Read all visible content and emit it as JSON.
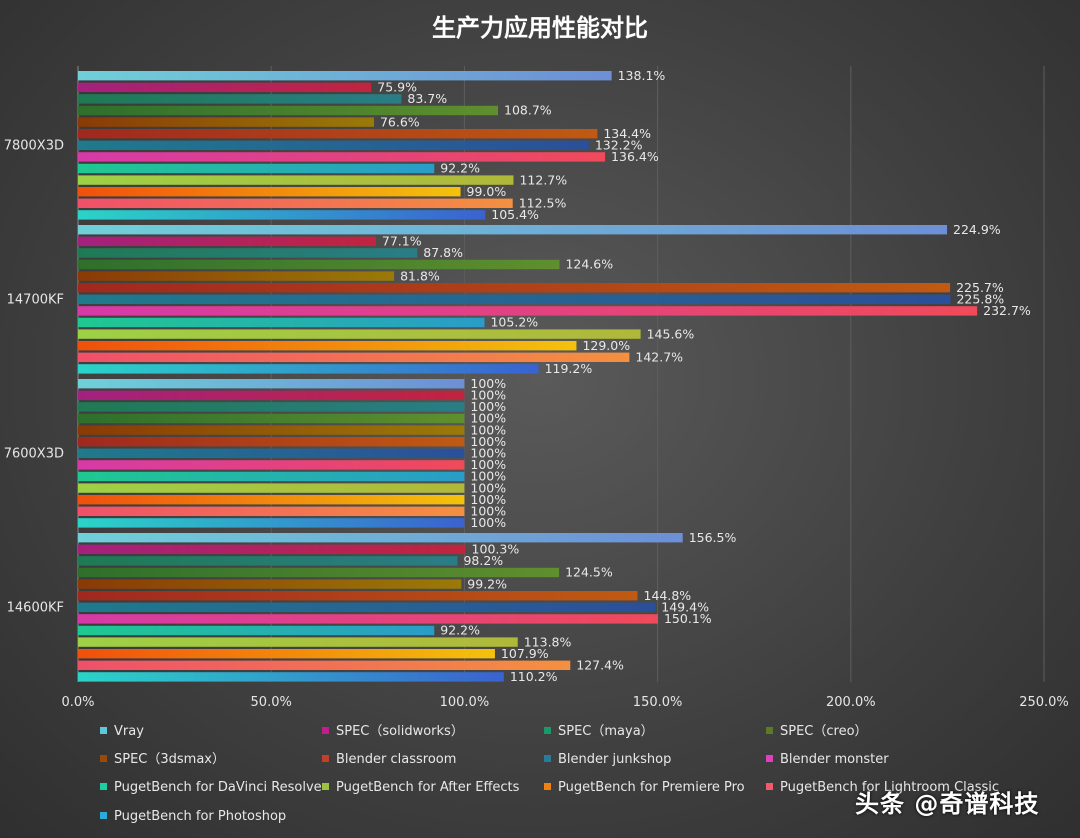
{
  "chart_data": {
    "type": "bar",
    "orientation": "horizontal",
    "title": "生产力应用性能对比",
    "xlabel": "",
    "ylabel": "",
    "xlim": [
      0,
      250
    ],
    "x_ticks": [
      "0.0%",
      "50.0%",
      "100.0%",
      "150.0%",
      "200.0%",
      "250.0%"
    ],
    "grid": true,
    "legend_position": "bottom",
    "categories": [
      "7800X3D",
      "14700KF",
      "7600X3D",
      "14600KF"
    ],
    "series": [
      {
        "name": "Vray",
        "values": [
          138.1,
          224.9,
          100,
          156.5
        ],
        "labels": [
          "138.1%",
          "224.9%",
          "100%",
          "156.5%"
        ]
      },
      {
        "name": "SPEC（solidworks）",
        "values": [
          75.9,
          77.1,
          100,
          100.3
        ],
        "labels": [
          "75.9%",
          "77.1%",
          "100%",
          "100.3%"
        ]
      },
      {
        "name": "SPEC（maya）",
        "values": [
          83.7,
          87.8,
          100,
          98.2
        ],
        "labels": [
          "83.7%",
          "87.8%",
          "100%",
          "98.2%"
        ]
      },
      {
        "name": "SPEC（creo）",
        "values": [
          108.7,
          124.6,
          100,
          124.5
        ],
        "labels": [
          "108.7%",
          "124.6%",
          "100%",
          "124.5%"
        ]
      },
      {
        "name": "SPEC（3dsmax）",
        "values": [
          76.6,
          81.8,
          100,
          99.2
        ],
        "labels": [
          "76.6%",
          "81.8%",
          "100%",
          "99.2%"
        ]
      },
      {
        "name": "Blender classroom",
        "values": [
          134.4,
          225.7,
          100,
          144.8
        ],
        "labels": [
          "134.4%",
          "225.7%",
          "100%",
          "144.8%"
        ]
      },
      {
        "name": "Blender junkshop",
        "values": [
          132.2,
          225.8,
          100,
          149.4
        ],
        "labels": [
          "132.2%",
          "225.8%",
          "100%",
          "149.4%"
        ]
      },
      {
        "name": "Blender monster",
        "values": [
          136.4,
          232.7,
          100,
          150.1
        ],
        "labels": [
          "136.4%",
          "232.7%",
          "100%",
          "150.1%"
        ]
      },
      {
        "name": "PugetBench for DaVinci Resolve",
        "values": [
          92.2,
          105.2,
          100,
          92.2
        ],
        "labels": [
          "92.2%",
          "105.2%",
          "100%",
          "92.2%"
        ]
      },
      {
        "name": "PugetBench for After Effects",
        "values": [
          112.7,
          145.6,
          100,
          113.8
        ],
        "labels": [
          "112.7%",
          "145.6%",
          "100%",
          "113.8%"
        ]
      },
      {
        "name": "PugetBench for Premiere Pro",
        "values": [
          99.0,
          129.0,
          100,
          107.9
        ],
        "labels": [
          "99.0%",
          "129.0%",
          "100%",
          "107.9%"
        ]
      },
      {
        "name": "PugetBench for Lightroom Classic",
        "values": [
          112.5,
          142.7,
          100,
          127.4
        ],
        "labels": [
          "112.5%",
          "142.7%",
          "100%",
          "127.4%"
        ]
      },
      {
        "name": "PugetBench for Photoshop",
        "values": [
          105.4,
          119.2,
          100,
          110.2
        ],
        "labels": [
          "105.4%",
          "119.2%",
          "100%",
          "110.2%"
        ]
      }
    ],
    "series_colors": [
      [
        "#6fd0d8",
        "#6d8fd6"
      ],
      [
        "#a3217f",
        "#c0243e"
      ],
      [
        "#1f7a54",
        "#2a7d86"
      ],
      [
        "#2f6f2c",
        "#5f8f2e"
      ],
      [
        "#8a3a06",
        "#9a7a08"
      ],
      [
        "#a0281e",
        "#c05a12"
      ],
      [
        "#1f7a8c",
        "#2b4f9a"
      ],
      [
        "#d63aa8",
        "#f04a5a"
      ],
      [
        "#1fc890",
        "#2a9cc8"
      ],
      [
        "#9ed046",
        "#b0b83a"
      ],
      [
        "#f0500c",
        "#f4c20c"
      ],
      [
        "#f0506a",
        "#f49040"
      ],
      [
        "#2ad4c8",
        "#3a62d0"
      ]
    ],
    "legend_colors": [
      "#5ec8d8",
      "#c0208a",
      "#1a9a6a",
      "#5a7a26",
      "#9a4a08",
      "#c0402a",
      "#2a7a9a",
      "#e040c0",
      "#1ad0a0",
      "#a0c040",
      "#f08010",
      "#f05a6a",
      "#30a8d8"
    ]
  },
  "watermark": "头条 @奇谱科技"
}
